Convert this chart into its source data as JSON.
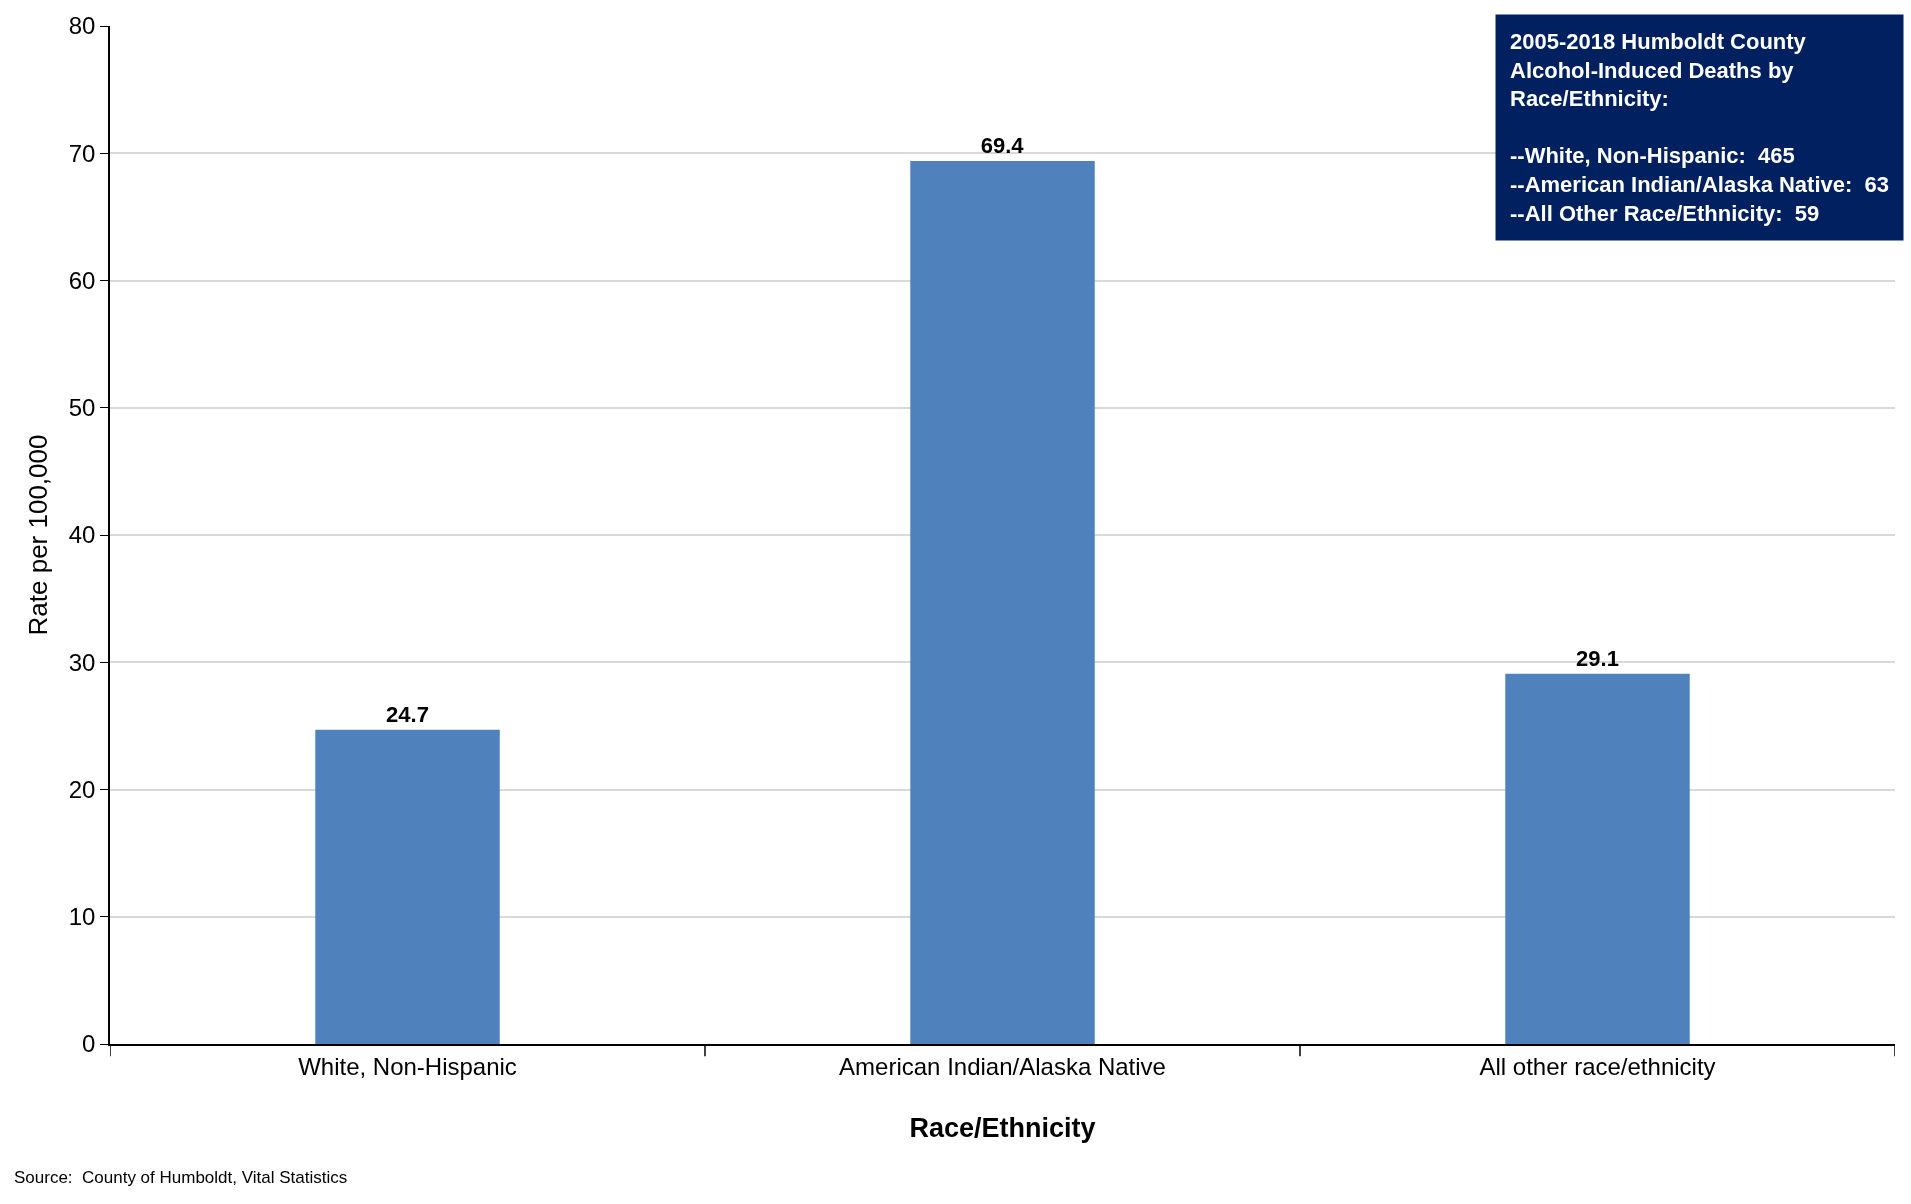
{
  "chart_data": {
    "type": "bar",
    "xlabel": "Race/Ethnicity",
    "ylabel": "Rate per 100,000",
    "categories": [
      "White, Non-Hispanic",
      "American Indian/Alaska Native",
      "All other race/ethnicity"
    ],
    "values": [
      24.7,
      69.4,
      29.1
    ],
    "color": "#4f81bd",
    "ylim": [
      0,
      80
    ],
    "yticks": [
      0,
      10,
      20,
      30,
      40,
      50,
      60,
      70,
      80
    ],
    "grid": "y",
    "data_labels": true,
    "annotations": [
      "2005-2018 Humboldt County\nAlcohol-Induced Deaths by\nRace/Ethnicity:\n\n--White, Non-Hispanic:  465\n--American Indian/Alaska Native:  63\n--All Other Race/Ethnicity:  59",
      "Source:  County of Humboldt, Vital Statistics"
    ]
  }
}
